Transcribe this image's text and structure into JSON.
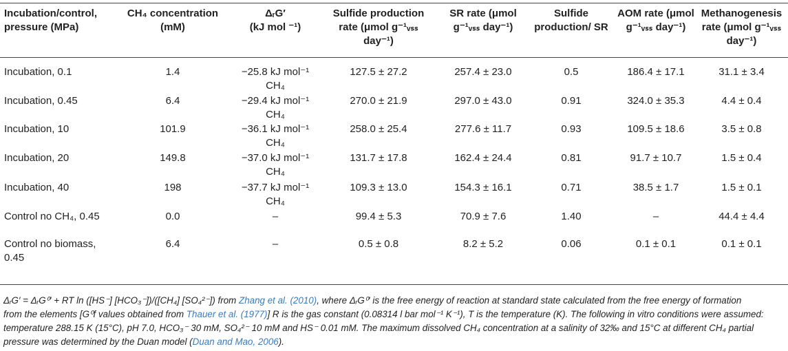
{
  "table": {
    "headers": [
      {
        "lines": [
          "Incubation/control,",
          "pressure (MPa)"
        ]
      },
      {
        "lines": [
          "CH₄ concentration",
          "(mM)"
        ]
      },
      {
        "lines": [
          "ΔᵣG′",
          "(kJ mol ⁻¹)"
        ]
      },
      {
        "lines": [
          "Sulfide production",
          "rate (μmol g⁻¹ᵥₛₛ",
          "day⁻¹)"
        ]
      },
      {
        "lines": [
          "SR rate (μmol",
          "g⁻¹ᵥₛₛ day⁻¹)"
        ]
      },
      {
        "lines": [
          "Sulfide",
          "production/ SR"
        ]
      },
      {
        "lines": [
          "AOM rate (μmol",
          "g⁻¹ᵥₛₛ day⁻¹)"
        ]
      },
      {
        "lines": [
          "Methanogenesis",
          "rate (μmol g⁻¹ᵥₛₛ",
          "day⁻¹)"
        ]
      }
    ],
    "rows": [
      {
        "label": "Incubation, 0.1",
        "ch4": "1.4",
        "dg1": "−25.8 kJ mol⁻¹",
        "dg2": "CH₄",
        "sulfide": "127.5 ± 27.2",
        "sr": "257.4 ± 23.0",
        "ratio": "0.5",
        "aom": "186.4 ± 17.1",
        "meth": "31.1 ± 3.4"
      },
      {
        "label": "Incubation, 0.45",
        "ch4": "6.4",
        "dg1": "−29.4 kJ mol⁻¹",
        "dg2": "CH₄",
        "sulfide": "270.0 ± 21.9",
        "sr": "297.0 ± 43.0",
        "ratio": "0.91",
        "aom": "324.0 ± 35.3",
        "meth": "4.4 ± 0.4"
      },
      {
        "label": "Incubation, 10",
        "ch4": "101.9",
        "dg1": "−36.1 kJ mol⁻¹",
        "dg2": "CH₄",
        "sulfide": "258.0 ± 25.4",
        "sr": "277.6 ± 11.7",
        "ratio": "0.93",
        "aom": "109.5 ± 18.6",
        "meth": "3.5 ± 0.8"
      },
      {
        "label": "Incubation, 20",
        "ch4": "149.8",
        "dg1": "−37.0 kJ mol⁻¹",
        "dg2": "CH₄",
        "sulfide": "131.7 ± 17.8",
        "sr": "162.4 ± 24.4",
        "ratio": "0.81",
        "aom": "91.7 ± 10.7",
        "meth": "1.5 ± 0.4"
      },
      {
        "label": "Incubation, 40",
        "ch4": "198",
        "dg1": "−37.7 kJ mol⁻¹",
        "dg2": "CH₄",
        "sulfide": "109.3 ± 13.0",
        "sr": "154.3 ± 16.1",
        "ratio": "0.71",
        "aom": "38.5 ± 1.7",
        "meth": "1.5 ± 0.1"
      },
      {
        "label": "Control no CH₄, 0.45",
        "ch4": "0.0",
        "dg1": "–",
        "dg2": "",
        "sulfide": "99.4 ± 5.3",
        "sr": "70.9 ± 7.6",
        "ratio": "1.40",
        "aom": "–",
        "meth": "44.4 ± 4.4"
      },
      {
        "label": "Control no biomass,",
        "label2": "0.45",
        "ch4": "6.4",
        "dg1": "–",
        "dg2": "",
        "sulfide": "0.5 ± 0.8",
        "sr": "8.2 ± 5.2",
        "ratio": "0.06",
        "aom": "0.1 ± 0.1",
        "meth": "0.1 ± 0.1"
      }
    ]
  },
  "footnote": {
    "line1_a": "ΔᵣG′ = ΔᵣG⁰′ + RT ln ([HS⁻] [HCO₃⁻])/([CH₄] [SO₄²⁻]) from ",
    "ref1": "Zhang et al. (2010)",
    "line1_b": ", where ΔᵣG⁰′ is the free energy of reaction at standard state calculated from the free energy of formation",
    "line2_a": "from the elements [G⁰f values obtained from ",
    "ref2": "Thauer et al. (1977)",
    "line2_b": "] R is the gas constant (0.08314 l bar mol⁻¹ K⁻¹), T is the temperature (K). The following in vitro conditions were assumed:",
    "line3": "temperature 288.15 K (15°C), pH 7.0, HCO₃⁻ 30 mM, SO₄²⁻ 10 mM and HS⁻ 0.01 mM. The maximum dissolved CH₄ concentration at a salinity of 32‰ and 15°C at different CH₄ partial",
    "line4_a": "pressure was determined by the Duan model (",
    "ref3": "Duan and Mao, 2006",
    "line4_b": ")."
  }
}
